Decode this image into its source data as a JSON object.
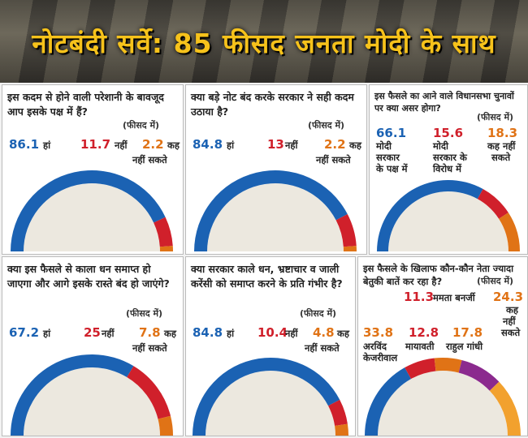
{
  "title": "नोटबंदी सर्वे: 85 फीसद जनता मोदी के साथ",
  "colors": {
    "blue": "#1b62b3",
    "red": "#d0202b",
    "orange": "#e07316",
    "title": "#f6c21b"
  },
  "unit_label": "(फीसद में)",
  "chart_data": [
    {
      "type": "pie",
      "question": "इस कदम से होने वाली परेशानी के बावजूद आप इसके पक्ष में हैं?",
      "slices": [
        {
          "label": "हां",
          "value": 86.1,
          "color": "#1b62b3"
        },
        {
          "label": "नहीं",
          "value": 11.7,
          "color": "#d0202b"
        },
        {
          "label": "कह नहीं सकते",
          "value": 2.2,
          "color": "#e07316"
        }
      ]
    },
    {
      "type": "pie",
      "question": "क्या बड़े नोट बंद करके सरकार ने सही कदम उठाया है?",
      "slices": [
        {
          "label": "हां",
          "value": 84.8,
          "color": "#1b62b3"
        },
        {
          "label": "नहीं",
          "value": 13,
          "color": "#d0202b"
        },
        {
          "label": "कह नहीं सकते",
          "value": 2.2,
          "color": "#e07316"
        }
      ]
    },
    {
      "type": "pie",
      "question": "इस फैसले का आने वाले विधानसभा चुनावों पर क्या असर होगा?",
      "slices": [
        {
          "label": "मोदी सरकार के पक्ष में",
          "value": 66.1,
          "color": "#1b62b3"
        },
        {
          "label": "मोदी सरकार के विरोध में",
          "value": 15.6,
          "color": "#d0202b"
        },
        {
          "label": "कह नहीं सकते",
          "value": 18.3,
          "color": "#e07316"
        }
      ]
    },
    {
      "type": "pie",
      "question": "क्या इस फैसले से काला धन समाप्त हो जाएगा और आगे इसके रास्ते बंद हो जाएंगे?",
      "slices": [
        {
          "label": "हां",
          "value": 67.2,
          "color": "#1b62b3"
        },
        {
          "label": "नहीं",
          "value": 25,
          "color": "#d0202b"
        },
        {
          "label": "कह नहीं सकते",
          "value": 7.8,
          "color": "#e07316"
        }
      ]
    },
    {
      "type": "pie",
      "question": "क्या सरकार काले धन, भ्रष्टाचार व जाली करेंसी को समाप्त करने के प्रति गंभीर है?",
      "slices": [
        {
          "label": "हां",
          "value": 84.8,
          "color": "#1b62b3"
        },
        {
          "label": "नहीं",
          "value": 10.4,
          "color": "#d0202b"
        },
        {
          "label": "कह नहीं सकते",
          "value": 4.8,
          "color": "#e07316"
        }
      ]
    },
    {
      "type": "pie",
      "question": "इस फैसले के खिलाफ कौन-कौन नेता ज्यादा बेतुकी बातें कर रहा है?",
      "slices": [
        {
          "label": "अरविंद केजरीवाल",
          "value": 33.8,
          "color": "#1b62b3"
        },
        {
          "label": "मायावती",
          "value": 12.8,
          "color": "#d0202b"
        },
        {
          "label": "ममता बनर्जी",
          "value": 11.3,
          "color": "#e07316"
        },
        {
          "label": "राहुल गांधी",
          "value": 17.8,
          "color": "#8b2a8e"
        },
        {
          "label": "कह नहीं सकते",
          "value": 24.3,
          "color": "#f2a12e"
        }
      ]
    }
  ],
  "panels": [
    {
      "q": "इस कदम से होने वाली परेशानी के बावजूद आप इसके पक्ष में हैं?",
      "yes_v": "86.1",
      "yes_l": "हां",
      "no_v": "11.7",
      "no_l": "नहीं",
      "cant_v": "2.2",
      "cant_l1": "कह",
      "cant_l2": "नहीं सकते"
    },
    {
      "q": "क्या बड़े नोट बंद करके सरकार ने सही कदम उठाया है?",
      "yes_v": "84.8",
      "yes_l": "हां",
      "no_v": "13",
      "no_l": "नहीं",
      "cant_v": "2.2",
      "cant_l1": "कह",
      "cant_l2": "नहीं सकते"
    },
    {
      "q": "इस फैसले का आने वाले विधानसभा चुनावों पर क्या असर होगा?",
      "a_v": "66.1",
      "a_l1": "मोदी",
      "a_l2": "सरकार",
      "a_l3": "के पक्ष में",
      "b_v": "15.6",
      "b_l1": "मोदी",
      "b_l2": "सरकार के",
      "b_l3": "विरोध में",
      "c_v": "18.3",
      "c_l1": "कह नहीं",
      "c_l2": "सकते"
    },
    {
      "q": "क्या इस फैसले से काला धन समाप्त हो जाएगा और आगे इसके रास्ते बंद हो जाएंगे?",
      "yes_v": "67.2",
      "yes_l": "हां",
      "no_v": "25",
      "no_l": "नहीं",
      "cant_v": "7.8",
      "cant_l1": "कह",
      "cant_l2": "नहीं सकते"
    },
    {
      "q": "क्या सरकार काले धन, भ्रष्टाचार व जाली करेंसी को समाप्त करने के प्रति गंभीर है?",
      "yes_v": "84.8",
      "yes_l": "हां",
      "no_v": "10.4",
      "no_l": "नहीं",
      "cant_v": "4.8",
      "cant_l1": "कह",
      "cant_l2": "नहीं सकते"
    },
    {
      "q": "इस फैसले के खिलाफ कौन-कौन नेता ज्यादा बेतुकी बातें कर रहा है?",
      "k_v": "33.8",
      "k_l1": "अरविंद",
      "k_l2": "केजरीवाल",
      "m_v": "12.8",
      "m_l": "मायावती",
      "mb_v": "11.3",
      "mb_l": "ममता बनर्जी",
      "r_v": "17.8",
      "r_l": "राहुल गांधी",
      "c_v": "24.3",
      "c_l1": "कह",
      "c_l2": "नहीं",
      "c_l3": "सकते"
    }
  ]
}
